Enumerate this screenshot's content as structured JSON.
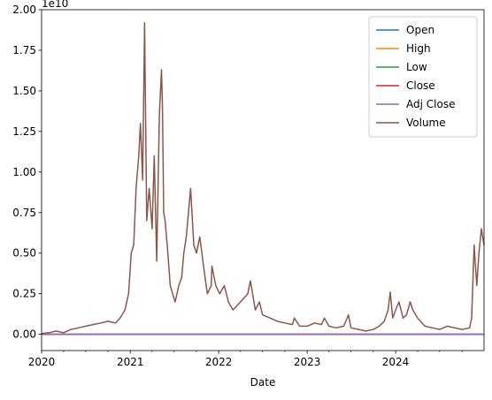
{
  "chart_data": {
    "type": "line",
    "xlabel": "Date",
    "ylabel": "",
    "y_offset_label": "1e10",
    "x_range": [
      "2020-01-01",
      "2024-12-31"
    ],
    "ylim": [
      -0.1,
      2.0
    ],
    "y_scale_multiplier": 10000000000,
    "x_tick_labels": [
      "2020",
      "2021",
      "2022",
      "2023",
      "2024"
    ],
    "x_tick_dates": [
      "2020-01-01",
      "2021-01-01",
      "2022-01-01",
      "2023-01-01",
      "2024-01-01"
    ],
    "y_ticks": [
      0.0,
      0.25,
      0.5,
      0.75,
      1.0,
      1.25,
      1.5,
      1.75,
      2.0
    ],
    "y_tick_labels": [
      "0.00",
      "0.25",
      "0.50",
      "0.75",
      "1.00",
      "1.25",
      "1.50",
      "1.75",
      "2.00"
    ],
    "legend_position": "top-right",
    "grid": false,
    "series": [
      {
        "name": "Open",
        "color": "#1f77b4",
        "values": []
      },
      {
        "name": "High",
        "color": "#ff7f0e",
        "values": []
      },
      {
        "name": "Low",
        "color": "#2ca02c",
        "values": []
      },
      {
        "name": "Close",
        "color": "#d62728",
        "values": []
      },
      {
        "name": "Adj Close",
        "color": "#9467bd",
        "values": []
      },
      {
        "name": "Volume",
        "color": "#8c564b",
        "x": [
          "2020-01-01",
          "2020-02-01",
          "2020-03-01",
          "2020-04-01",
          "2020-05-01",
          "2020-06-01",
          "2020-07-01",
          "2020-08-01",
          "2020-09-01",
          "2020-10-01",
          "2020-11-01",
          "2020-11-20",
          "2020-12-10",
          "2020-12-25",
          "2021-01-05",
          "2021-01-15",
          "2021-01-25",
          "2021-02-05",
          "2021-02-12",
          "2021-02-21",
          "2021-03-01",
          "2021-03-10",
          "2021-03-20",
          "2021-04-01",
          "2021-04-10",
          "2021-04-20",
          "2021-05-01",
          "2021-05-10",
          "2021-05-14",
          "2021-05-19",
          "2021-05-25",
          "2021-06-05",
          "2021-06-15",
          "2021-06-25",
          "2021-07-05",
          "2021-07-20",
          "2021-08-01",
          "2021-08-10",
          "2021-08-20",
          "2021-09-01",
          "2021-09-07",
          "2021-09-20",
          "2021-10-01",
          "2021-10-15",
          "2021-11-01",
          "2021-11-15",
          "2021-12-01",
          "2021-12-04",
          "2021-12-20",
          "2022-01-05",
          "2022-01-24",
          "2022-02-10",
          "2022-03-01",
          "2022-04-01",
          "2022-05-01",
          "2022-05-12",
          "2022-06-01",
          "2022-06-18",
          "2022-07-01",
          "2022-08-01",
          "2022-09-01",
          "2022-10-01",
          "2022-11-01",
          "2022-11-09",
          "2022-12-01",
          "2023-01-01",
          "2023-02-01",
          "2023-03-01",
          "2023-03-13",
          "2023-04-01",
          "2023-05-01",
          "2023-06-01",
          "2023-06-20",
          "2023-07-01",
          "2023-08-01",
          "2023-09-01",
          "2023-10-01",
          "2023-10-25",
          "2023-11-15",
          "2023-12-01",
          "2023-12-10",
          "2023-12-20",
          "2024-01-01",
          "2024-01-15",
          "2024-02-01",
          "2024-02-15",
          "2024-03-01",
          "2024-03-12",
          "2024-04-01",
          "2024-05-01",
          "2024-06-01",
          "2024-07-01",
          "2024-08-01",
          "2024-09-01",
          "2024-10-01",
          "2024-11-01",
          "2024-11-10",
          "2024-11-20",
          "2024-12-01",
          "2024-12-10",
          "2024-12-20",
          "2024-12-31"
        ],
        "values": [
          0.005,
          0.01,
          0.02,
          0.01,
          0.03,
          0.04,
          0.05,
          0.06,
          0.07,
          0.08,
          0.07,
          0.1,
          0.15,
          0.25,
          0.5,
          0.55,
          0.9,
          1.1,
          1.3,
          0.95,
          1.92,
          0.7,
          0.9,
          0.65,
          1.1,
          0.45,
          1.35,
          1.63,
          1.4,
          0.75,
          0.7,
          0.5,
          0.3,
          0.25,
          0.2,
          0.3,
          0.35,
          0.5,
          0.6,
          0.8,
          0.9,
          0.55,
          0.5,
          0.6,
          0.4,
          0.25,
          0.3,
          0.42,
          0.3,
          0.25,
          0.3,
          0.2,
          0.15,
          0.2,
          0.25,
          0.33,
          0.15,
          0.2,
          0.12,
          0.1,
          0.08,
          0.07,
          0.06,
          0.1,
          0.05,
          0.05,
          0.07,
          0.06,
          0.1,
          0.05,
          0.04,
          0.05,
          0.12,
          0.04,
          0.03,
          0.02,
          0.03,
          0.05,
          0.08,
          0.15,
          0.26,
          0.1,
          0.15,
          0.2,
          0.1,
          0.12,
          0.2,
          0.15,
          0.1,
          0.05,
          0.04,
          0.03,
          0.05,
          0.04,
          0.03,
          0.04,
          0.1,
          0.55,
          0.3,
          0.5,
          0.65,
          0.55
        ]
      }
    ]
  }
}
